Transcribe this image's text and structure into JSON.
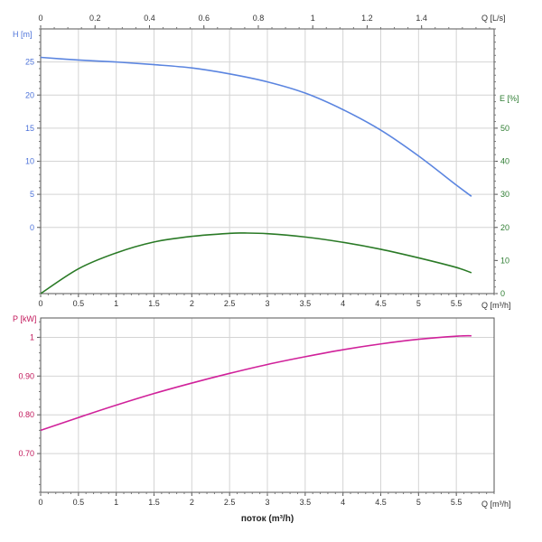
{
  "chart_data": [
    {
      "type": "line",
      "panel": "top",
      "grid": true,
      "x": {
        "label": "Q [m³/h]",
        "lim": [
          0,
          6
        ],
        "ticks": [
          0,
          0.5,
          1,
          1.5,
          2,
          2.5,
          3,
          3.5,
          4,
          4.5,
          5,
          5.5
        ],
        "tick_labels": [
          "0",
          "0.5",
          "1",
          "1.5",
          "2",
          "2.5",
          "3",
          "3.5",
          "4",
          "4.5",
          "5",
          "5.5"
        ]
      },
      "x_top": {
        "label": "Q [L/s]",
        "ticks": [
          0,
          0.2,
          0.4,
          0.6,
          0.8,
          1,
          1.2,
          1.4
        ],
        "tick_labels": [
          "0",
          "0.2",
          "0.4",
          "0.6",
          "0.8",
          "1",
          "1.2",
          "1.4"
        ]
      },
      "y_left": {
        "label": "H [m]",
        "color": "#4c72d9",
        "lim": [
          -10,
          30
        ],
        "ticks": [
          0,
          5,
          10,
          15,
          20,
          25
        ],
        "tick_labels": [
          "0",
          "5",
          "10",
          "15",
          "20",
          "25"
        ]
      },
      "y_right": {
        "label": "E [%]",
        "color": "#2e7d32",
        "lim": [
          0,
          80
        ],
        "ticks": [
          0,
          10,
          20,
          30,
          40,
          50
        ],
        "tick_labels": [
          "0",
          "10",
          "20",
          "30",
          "40",
          "50"
        ]
      },
      "series": [
        {
          "axis": "left",
          "color": "#5b85e0",
          "x": [
            0,
            0.5,
            1,
            1.5,
            2,
            2.5,
            3,
            3.5,
            4,
            4.5,
            5,
            5.5,
            5.7
          ],
          "y": [
            25.7,
            25.3,
            25.0,
            24.6,
            24.1,
            23.2,
            22.0,
            20.3,
            17.8,
            14.7,
            10.8,
            6.4,
            4.7
          ]
        },
        {
          "axis": "right",
          "color": "#2a7a26",
          "x": [
            0,
            0.5,
            1,
            1.5,
            2,
            2.5,
            2.7,
            3,
            3.5,
            4,
            4.5,
            5,
            5.5,
            5.7
          ],
          "y": [
            0,
            7.5,
            12.3,
            15.6,
            17.3,
            18.2,
            18.3,
            18.1,
            17.1,
            15.5,
            13.4,
            10.8,
            7.9,
            6.3
          ]
        }
      ]
    },
    {
      "type": "line",
      "panel": "bottom",
      "grid": true,
      "x": {
        "label": "Q [m³/h]",
        "lim": [
          0,
          6
        ],
        "ticks": [
          0,
          0.5,
          1,
          1.5,
          2,
          2.5,
          3,
          3.5,
          4,
          4.5,
          5,
          5.5
        ],
        "tick_labels": [
          "0",
          "0.5",
          "1",
          "1.5",
          "2",
          "2.5",
          "3",
          "3.5",
          "4",
          "4.5",
          "5",
          "5.5"
        ]
      },
      "y_left": {
        "label": "P [kW]",
        "color": "#c2185b",
        "lim": [
          0.6,
          1.05
        ],
        "ticks": [
          0.7,
          0.8,
          0.9,
          1.0
        ],
        "tick_labels": [
          "0.70",
          "0.80",
          "0.90",
          "1"
        ]
      },
      "series": [
        {
          "axis": "left",
          "color": "#d0219a",
          "x": [
            0,
            0.5,
            1,
            1.5,
            2,
            2.5,
            3,
            3.5,
            4,
            4.5,
            5,
            5.5,
            5.7
          ],
          "y": [
            0.76,
            0.793,
            0.825,
            0.855,
            0.882,
            0.907,
            0.93,
            0.95,
            0.968,
            0.983,
            0.995,
            1.003,
            1.004
          ]
        }
      ]
    }
  ],
  "footer": {
    "xlabel": "поток (m³/h)"
  }
}
